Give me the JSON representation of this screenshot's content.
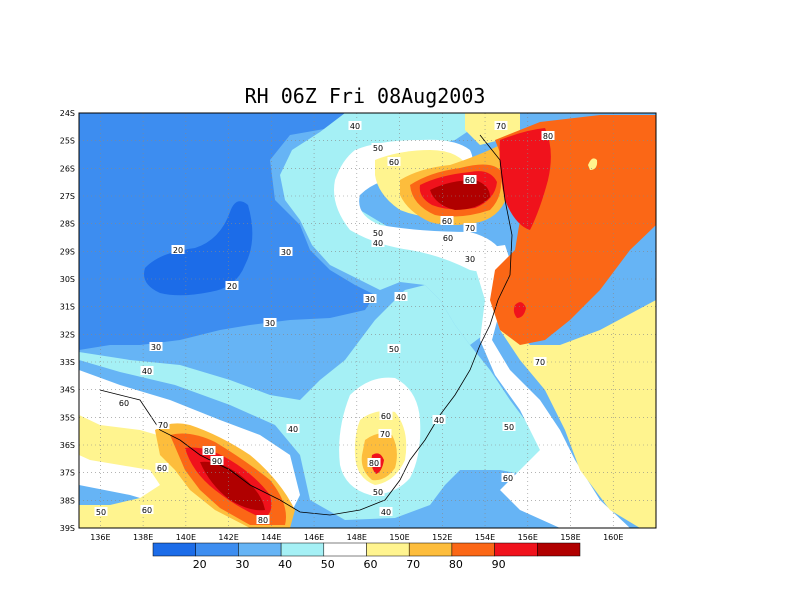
{
  "title": "RH 06Z Fri 08Aug2003",
  "map": {
    "lon_labels": [
      "136E",
      "138E",
      "140E",
      "142E",
      "144E",
      "146E",
      "148E",
      "150E",
      "152E",
      "154E",
      "156E",
      "158E",
      "160E"
    ],
    "lat_labels": [
      "24S",
      "25S",
      "26S",
      "27S",
      "28S",
      "29S",
      "30S",
      "31S",
      "32S",
      "33S",
      "34S",
      "35S",
      "36S",
      "37S",
      "38S",
      "39S"
    ],
    "contour_labels": [
      "40",
      "50",
      "60",
      "70",
      "80",
      "80",
      "60",
      "70",
      "60",
      "50",
      "40",
      "20",
      "30",
      "20",
      "30",
      "30",
      "40",
      "30",
      "30",
      "70",
      "40",
      "60",
      "50",
      "40",
      "60",
      "70",
      "80",
      "40",
      "50",
      "70",
      "90",
      "80",
      "60",
      "50",
      "60",
      "40",
      "50",
      "60",
      "80",
      "60"
    ]
  },
  "colorbar": {
    "colors": [
      "#1c6ce8",
      "#3d8df0",
      "#66b4f5",
      "#a5f0f5",
      "#ffffff",
      "#fff48f",
      "#fdbd3c",
      "#fb6716",
      "#f0121c",
      "#b00000"
    ],
    "labels": [
      "20",
      "30",
      "40",
      "50",
      "60",
      "70",
      "80",
      "90"
    ]
  }
}
